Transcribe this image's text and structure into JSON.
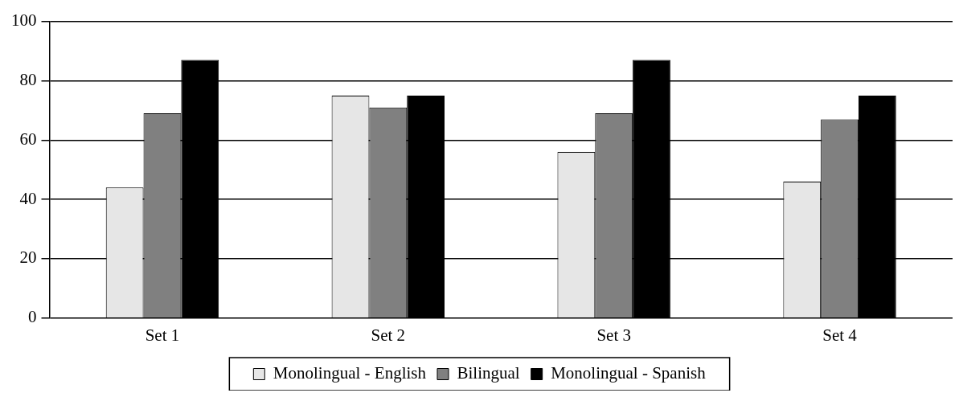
{
  "chart_data": {
    "type": "bar",
    "categories": [
      "Set 1",
      "Set 2",
      "Set 3",
      "Set 4"
    ],
    "series": [
      {
        "name": "Monolingual - English",
        "color": "#e6e6e6",
        "values": [
          44,
          75,
          56,
          46
        ]
      },
      {
        "name": "Bilingual",
        "color": "#808080",
        "values": [
          69,
          71,
          69,
          67
        ]
      },
      {
        "name": "Monolingual - Spanish",
        "color": "#000000",
        "values": [
          87,
          75,
          87,
          75
        ]
      }
    ],
    "ylim": [
      0,
      100
    ],
    "yticks": [
      0,
      20,
      40,
      60,
      80,
      100
    ],
    "grid": "y",
    "legend": "bottom"
  }
}
